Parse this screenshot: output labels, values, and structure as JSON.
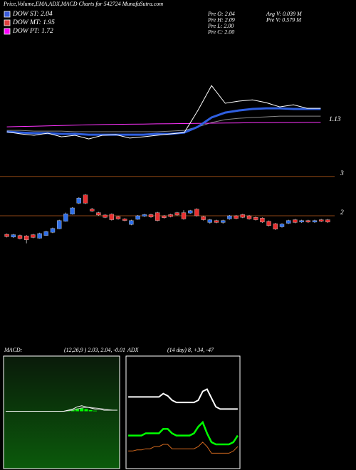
{
  "header": {
    "title": "Price,Volume,EMA,ADX,MACD Charts for 542724 MunafaSutra.com",
    "legend": [
      {
        "label": "DOW ST: 2.04",
        "color": "#3a5bd9"
      },
      {
        "label": "DOW MT: 1.95",
        "color": "#e04040"
      },
      {
        "label": "DOW PT: 1.72",
        "color": "#ff00ff"
      }
    ],
    "stats": [
      "Pre  O: 2.04",
      "Pre  H: 2.09",
      "Pre  L: 2.00",
      "Pre  C: 2.00"
    ],
    "stats2": [
      "Avg V: 0.039 M",
      "Pre  V: 0.579 M"
    ]
  },
  "chart_data": [
    {
      "type": "line",
      "ylim": [
        -1.4,
        6.0
      ],
      "yticks": [
        1.13
      ],
      "grid": false,
      "series": [
        {
          "color": "#888888",
          "values": [
            0.64,
            0.64,
            0.6,
            0.6,
            0.6,
            0.56,
            0.56,
            0.56,
            0.56,
            0.56,
            0.56,
            0.56,
            0.6,
            0.64,
            0.86,
            1.12,
            1.3,
            1.38,
            1.43,
            1.47,
            1.51,
            1.51,
            1.51,
            1.51
          ]
        },
        {
          "color": "#ff33ff",
          "values": [
            0.86,
            0.88,
            0.9,
            0.92,
            0.94,
            0.96,
            0.98,
            1.0,
            1.01,
            1.02,
            1.03,
            1.04,
            1.05,
            1.06,
            1.07,
            1.08,
            1.09,
            1.1,
            1.11,
            1.11,
            1.12,
            1.12,
            1.13,
            1.13
          ]
        },
        {
          "color": "#2f5fe0",
          "width": 3,
          "values": [
            0.56,
            0.51,
            0.47,
            0.47,
            0.43,
            0.43,
            0.38,
            0.38,
            0.38,
            0.38,
            0.38,
            0.43,
            0.43,
            0.51,
            0.86,
            1.43,
            1.73,
            1.86,
            1.95,
            1.99,
            1.99,
            1.95,
            1.95,
            1.95
          ]
        },
        {
          "color": "#ffffff",
          "values": [
            0.56,
            0.43,
            0.34,
            0.47,
            0.25,
            0.34,
            0.12,
            0.34,
            0.38,
            0.17,
            0.25,
            0.34,
            0.43,
            0.51,
            1.86,
            3.38,
            2.3,
            2.43,
            2.51,
            2.34,
            2.08,
            2.21,
            1.99,
            1.99
          ]
        }
      ]
    },
    {
      "type": "candlestick",
      "ylim": [
        1.15,
        3.05
      ],
      "yticks": [
        3,
        2
      ],
      "grid": true,
      "up_color": "#2f6fe8",
      "down_color": "#e83030",
      "open": [
        1.53,
        1.46,
        1.5,
        1.49,
        1.52,
        1.43,
        1.5,
        1.58,
        1.67,
        1.86,
        2.04,
        2.32,
        2.53,
        2.17,
        2.08,
        2.02,
        2.04,
        1.98,
        1.92,
        1.78,
        1.91,
        1.99,
        2.03,
        2.08,
        2.0,
        2.03,
        2.08,
        2.08,
        2.07,
        2.17,
        1.98,
        1.83,
        1.88,
        1.83,
        1.92,
        2.0,
        2.03,
        2.0,
        1.96,
        1.94,
        1.86,
        1.8,
        1.72,
        1.81,
        1.9,
        1.84,
        1.88,
        1.84,
        1.9,
        1.9
      ],
      "high": [
        1.55,
        1.54,
        1.52,
        1.51,
        1.54,
        1.57,
        1.62,
        1.7,
        1.9,
        2.08,
        2.22,
        2.47,
        2.55,
        2.2,
        2.1,
        2.04,
        2.06,
        2.0,
        1.94,
        1.9,
        2.02,
        2.05,
        2.05,
        2.1,
        2.02,
        2.05,
        2.1,
        2.14,
        2.15,
        2.19,
        2.0,
        1.92,
        1.9,
        1.9,
        2.02,
        2.02,
        2.05,
        2.02,
        1.98,
        1.96,
        1.88,
        1.82,
        1.81,
        1.9,
        1.92,
        1.9,
        1.9,
        1.9,
        1.92,
        1.92
      ],
      "low": [
        1.45,
        1.44,
        1.4,
        1.3,
        1.43,
        1.42,
        1.49,
        1.56,
        1.66,
        1.85,
        2.03,
        2.3,
        2.3,
        2.1,
        2.0,
        1.94,
        1.88,
        1.9,
        1.86,
        1.76,
        1.9,
        1.97,
        1.95,
        1.86,
        1.93,
        1.96,
        2.0,
        1.9,
        2.05,
        1.98,
        1.88,
        1.8,
        1.81,
        1.8,
        1.9,
        1.91,
        1.94,
        1.9,
        1.88,
        1.82,
        1.73,
        1.64,
        1.7,
        1.79,
        1.81,
        1.82,
        1.82,
        1.82,
        1.84,
        1.82
      ],
      "close": [
        1.47,
        1.52,
        1.42,
        1.39,
        1.45,
        1.55,
        1.6,
        1.68,
        1.88,
        2.05,
        2.2,
        2.45,
        2.32,
        2.12,
        2.02,
        1.96,
        1.9,
        1.92,
        1.88,
        1.88,
        2.0,
        2.03,
        1.97,
        1.88,
        1.95,
        1.98,
        2.02,
        1.92,
        2.13,
        2.0,
        1.9,
        1.9,
        1.83,
        1.88,
        2.0,
        1.93,
        1.96,
        1.92,
        1.9,
        1.84,
        1.75,
        1.66,
        1.79,
        1.88,
        1.83,
        1.88,
        1.84,
        1.88,
        1.86,
        1.84
      ]
    },
    {
      "type": "line",
      "title": "MACD:",
      "subtitle": "(12,26,9 ) 2.03, 2.04, -0.01",
      "ylim": [
        -0.5,
        0.5
      ],
      "series": [
        {
          "color": "#00ff00",
          "style": "bar",
          "values": [
            0,
            0,
            0,
            0,
            0,
            0,
            0,
            0,
            0,
            0,
            0,
            0,
            0,
            0,
            0.01,
            0.015,
            0.025,
            0.03,
            0.02,
            0.01,
            0.005,
            0,
            0,
            0,
            0,
            0
          ]
        },
        {
          "color": "#bbbbbb",
          "values": [
            0,
            0,
            0,
            0,
            0,
            0,
            0,
            0,
            0,
            0,
            0,
            0,
            0,
            0,
            0.005,
            0.01,
            0.02,
            0.03,
            0.035,
            0.035,
            0.03,
            0.025,
            0.02,
            0.015,
            0.01,
            0.01
          ]
        },
        {
          "color": "#ffffff",
          "values": [
            0,
            0,
            0,
            0,
            0,
            0,
            0,
            0,
            0,
            0,
            0,
            0,
            0,
            0,
            0.01,
            0.02,
            0.04,
            0.05,
            0.04,
            0.03,
            0.02,
            0.02,
            0.01,
            0.01,
            0.01,
            0.01
          ]
        }
      ]
    },
    {
      "type": "line",
      "title": "ADX",
      "subtitle": "(14 day) 8, +34, -47",
      "ylim": [
        0,
        100
      ],
      "series": [
        {
          "color": "#ffffff",
          "width": 2,
          "values": [
            63,
            63,
            63,
            63,
            63,
            63,
            63,
            63,
            66,
            64,
            60,
            58,
            58,
            58,
            58,
            58,
            60,
            68,
            70,
            62,
            54,
            52,
            52,
            52,
            52,
            52
          ]
        },
        {
          "color": "#00ff00",
          "width": 2.5,
          "values": [
            28,
            28,
            28,
            28,
            30,
            30,
            30,
            30,
            34,
            34,
            30,
            28,
            28,
            28,
            28,
            30,
            36,
            40,
            30,
            22,
            20,
            20,
            20,
            20,
            22,
            28
          ]
        },
        {
          "color": "#d2691e",
          "values": [
            14,
            14,
            15,
            15,
            16,
            16,
            18,
            18,
            20,
            20,
            16,
            16,
            16,
            16,
            16,
            16,
            18,
            22,
            18,
            12,
            12,
            12,
            12,
            12,
            14,
            18
          ]
        }
      ]
    }
  ]
}
